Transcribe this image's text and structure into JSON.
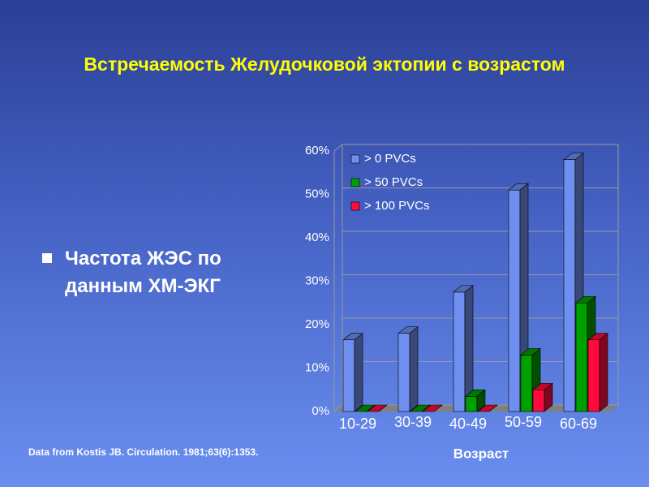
{
  "chart_data": {
    "type": "bar3d",
    "title": "Встречаемость Желудочковой эктопии с возрастом",
    "x_label": "Возраст",
    "categories": [
      "10-29",
      "30-39",
      "40-49",
      "50-59",
      "60-69"
    ],
    "series": [
      {
        "name": "> 0 PVCs",
        "color": "#6f8ff0",
        "values": [
          16.5,
          18,
          27.5,
          51,
          58
        ]
      },
      {
        "name": "> 50 PVCs",
        "color": "#00a000",
        "values": [
          0,
          0,
          3.5,
          13,
          25
        ]
      },
      {
        "name": "> 100 PVCs",
        "color": "#ff0a3c",
        "values": [
          0,
          0,
          0,
          5,
          16.5
        ]
      }
    ],
    "ylim": [
      0,
      60
    ],
    "yticks": [
      {
        "value": 0,
        "label": "0%"
      },
      {
        "value": 10,
        "label": "10%"
      },
      {
        "value": 20,
        "label": "20%"
      },
      {
        "value": 30,
        "label": "30%"
      },
      {
        "value": 40,
        "label": "40%"
      },
      {
        "value": 50,
        "label": "50%"
      },
      {
        "value": 60,
        "label": "60%"
      }
    ],
    "grid": true,
    "legend": "top-left"
  },
  "bullet": "Частота ЖЭС по данным ХМ-ЭКГ",
  "source": "Data from Kostis JB.  Circulation.  1981;63(6):1353."
}
